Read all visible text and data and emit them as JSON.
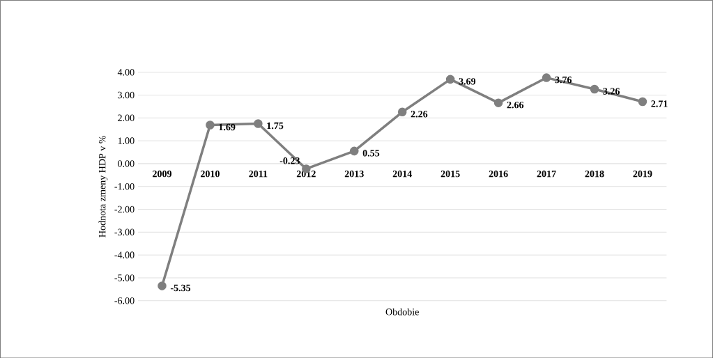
{
  "chart_data": {
    "type": "line",
    "xlabel": "Obdobie",
    "ylabel": "Hodnota zmeny HDP v %",
    "categories": [
      "2009",
      "2010",
      "2011",
      "2012",
      "2013",
      "2014",
      "2015",
      "2016",
      "2017",
      "2018",
      "2019"
    ],
    "series": [
      {
        "color": "#7f7f7f",
        "values": [
          -5.35,
          1.69,
          1.75,
          -0.23,
          0.55,
          2.26,
          3.69,
          2.66,
          3.76,
          3.26,
          2.71
        ]
      }
    ],
    "ylim": [
      -6,
      4
    ],
    "yticks": [
      {
        "value": -6,
        "label": "-6.00"
      },
      {
        "value": -5,
        "label": "-5.00"
      },
      {
        "value": -4,
        "label": "-4.00"
      },
      {
        "value": -3,
        "label": "-3.00"
      },
      {
        "value": -2,
        "label": "-2.00"
      },
      {
        "value": -1,
        "label": "-1.00"
      },
      {
        "value": 0,
        "label": "0.00"
      },
      {
        "value": 1,
        "label": "1.00"
      },
      {
        "value": 2,
        "label": "2.00"
      },
      {
        "value": 3,
        "label": "3.00"
      },
      {
        "value": 4,
        "label": "4.00"
      }
    ],
    "grid": "y",
    "marker": "circle",
    "line_style": "solid",
    "data_labels": true
  }
}
